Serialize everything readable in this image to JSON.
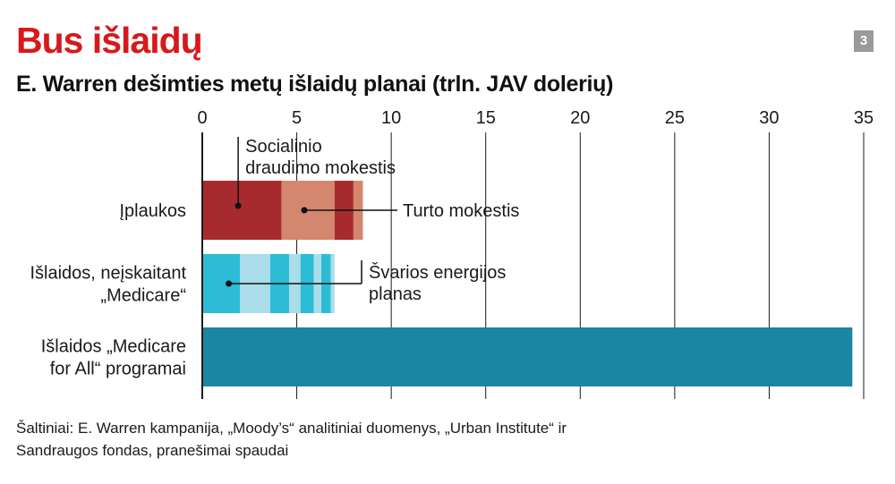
{
  "header": {
    "title": "Bus išlaidų",
    "subtitle": "E. Warren dešimties metų išlaidų planai (trln. JAV dolerių)",
    "badge": "3"
  },
  "source": {
    "line1": "Šaltiniai: E. Warren kampanija, „Moody’s“ analitiniai duomenys, „Urban Institute“ ir",
    "line2": "Sandraugos fondas, pranešimai spaudai"
  },
  "colors": {
    "title_red": "#d7191c",
    "revenue_dark": "#a72b2e",
    "revenue_light": "#d4866f",
    "spending_cyan": "#2cbcd6",
    "spending_light": "#a9dde9",
    "medicare_teal": "#1a86a3"
  },
  "chart_data": {
    "type": "bar",
    "orientation": "horizontal",
    "stacked": true,
    "xlim": [
      0,
      35
    ],
    "x_ticks": [
      0,
      5,
      10,
      15,
      20,
      25,
      30,
      35
    ],
    "grid": true,
    "categories": [
      [
        "Įplaukos"
      ],
      [
        "Išlaidos, neįskaitant",
        "„Medicare“"
      ],
      [
        "Išlaidos „Medicare",
        "for All“ programai"
      ]
    ],
    "bars": [
      {
        "segments": [
          {
            "value": 4.2,
            "color": "#a72b2e"
          },
          {
            "value": 2.8,
            "color": "#d4866f"
          },
          {
            "value": 1.0,
            "color": "#a72b2e"
          },
          {
            "value": 0.5,
            "color": "#d4866f"
          }
        ]
      },
      {
        "segments": [
          {
            "value": 2.0,
            "color": "#2cbcd6"
          },
          {
            "value": 1.6,
            "color": "#a9dde9"
          },
          {
            "value": 1.0,
            "color": "#2cbcd6"
          },
          {
            "value": 0.6,
            "color": "#a9dde9"
          },
          {
            "value": 0.7,
            "color": "#2cbcd6"
          },
          {
            "value": 0.4,
            "color": "#a9dde9"
          },
          {
            "value": 0.5,
            "color": "#2cbcd6"
          },
          {
            "value": 0.2,
            "color": "#a9dde9"
          }
        ]
      },
      {
        "segments": [
          {
            "value": 34.4,
            "color": "#1a86a3"
          }
        ]
      }
    ],
    "annotations": [
      {
        "text": [
          "Socialinio",
          "draudimo mokestis"
        ],
        "bar": 0,
        "at": 1.9
      },
      {
        "text": [
          "Turto mokestis"
        ],
        "bar": 0,
        "at": 5.4
      },
      {
        "text": [
          "Švarios energijos",
          "planas"
        ],
        "bar": 1,
        "at": 1.4
      }
    ]
  }
}
